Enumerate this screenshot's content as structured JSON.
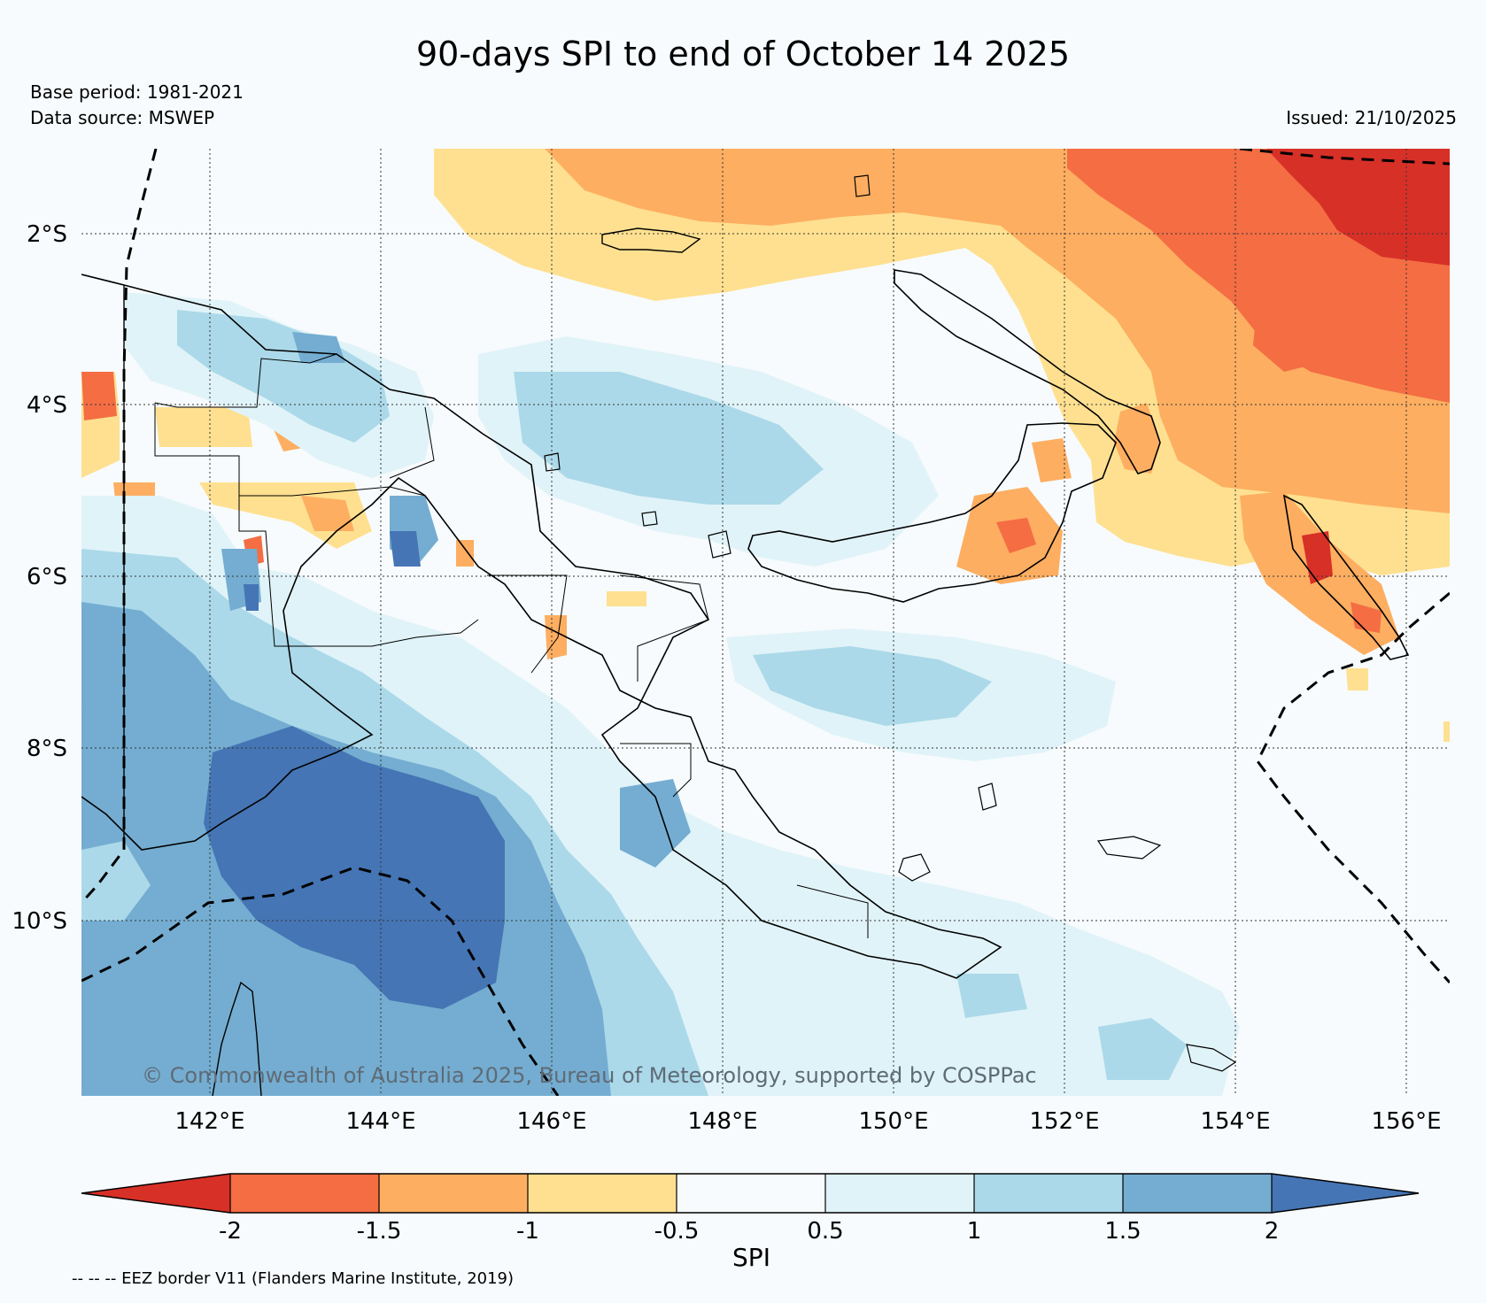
{
  "title": "90-days SPI to end of October 14 2025",
  "base_period": "Base period: 1981-2021",
  "data_source": "Data source: MSWEP",
  "issued": "Issued: 21/10/2025",
  "copyright": "© Commonwealth of Australia 2025, Bureau of Meteorology, supported by COSPPac",
  "lat_ticks": [
    "2°S",
    "4°S",
    "6°S",
    "8°S",
    "10°S"
  ],
  "lon_ticks": [
    "142°E",
    "144°E",
    "146°E",
    "148°E",
    "150°E",
    "152°E",
    "154°E",
    "156°E"
  ],
  "colorbar": {
    "label": "SPI",
    "tick_labels": [
      "-2",
      "-1.5",
      "-1",
      "-0.5",
      "0.5",
      "1",
      "1.5",
      "2"
    ],
    "colors": [
      "#d73027",
      "#f46d43",
      "#fdae61",
      "#fee090",
      "#f7fbfd",
      "#e0f3f8",
      "#abd9e9",
      "#74add1",
      "#4575b4"
    ]
  },
  "footnote": "-- -- -- EEZ border V11 (Flanders Marine Institute, 2019)",
  "colors": {
    "very_dry": "#d73027",
    "dry": "#f46d43",
    "mod_dry": "#fdae61",
    "slight_dry": "#fee090",
    "normal": "#f7fbfd",
    "slight_wet": "#e0f3f8",
    "mod_wet": "#abd9e9",
    "wet": "#74add1",
    "very_wet": "#4575b4"
  }
}
